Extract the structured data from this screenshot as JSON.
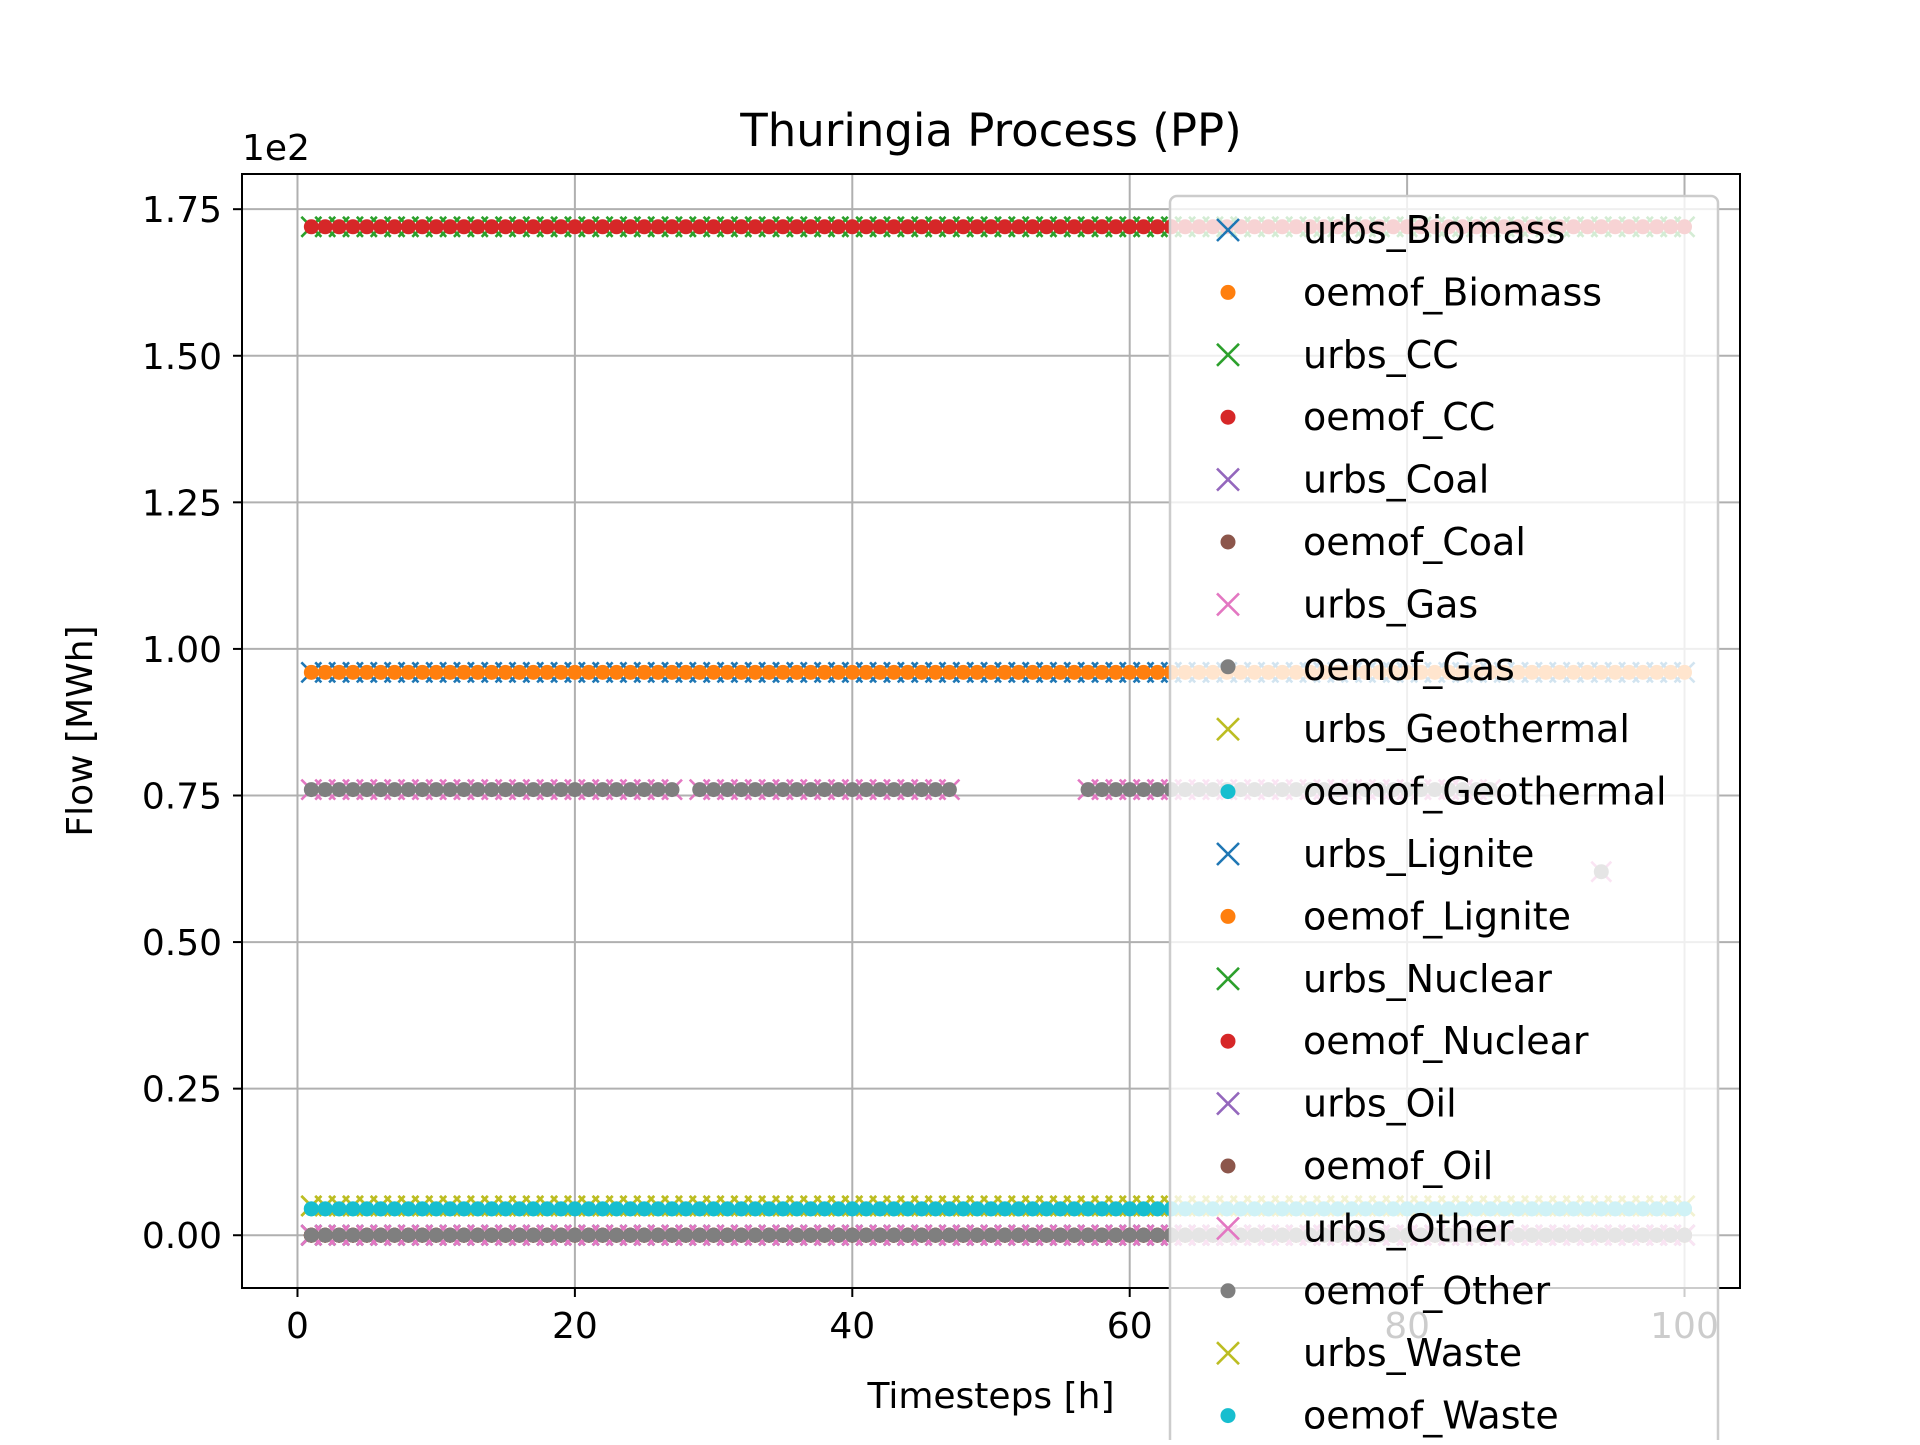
{
  "chart_data": {
    "type": "scatter",
    "title": "Thuringia Process (PP)",
    "xlabel": "Timesteps [h]",
    "ylabel": "Flow [MWh]",
    "y_offset_label": "1e2",
    "xlim": [
      -4,
      104
    ],
    "ylim": [
      -0.09,
      1.81
    ],
    "x_ticks": [
      0,
      20,
      40,
      60,
      80,
      100
    ],
    "x_tick_labels": [
      "0",
      "20",
      "40",
      "60",
      "80",
      "100"
    ],
    "y_ticks": [
      0.0,
      0.25,
      0.5,
      0.75,
      1.0,
      1.25,
      1.5,
      1.75
    ],
    "y_tick_labels": [
      "0.00",
      "0.25",
      "0.50",
      "0.75",
      "1.00",
      "1.25",
      "1.50",
      "1.75"
    ],
    "grid": true,
    "legend_position": "upper-right",
    "x": [
      1,
      100
    ],
    "series": [
      {
        "name": "urbs_Biomass",
        "marker": "x",
        "color": "#1f77b4",
        "segments": [
          [
            1,
            100,
            0.96
          ]
        ]
      },
      {
        "name": "oemof_Biomass",
        "marker": "dot",
        "color": "#ff7f0e",
        "segments": [
          [
            1,
            100,
            0.96
          ]
        ]
      },
      {
        "name": "urbs_CC",
        "marker": "x",
        "color": "#2ca02c",
        "segments": [
          [
            1,
            100,
            1.72
          ]
        ]
      },
      {
        "name": "oemof_CC",
        "marker": "dot",
        "color": "#d62728",
        "segments": [
          [
            1,
            100,
            1.72
          ]
        ]
      },
      {
        "name": "urbs_Coal",
        "marker": "x",
        "color": "#9467bd",
        "segments": [
          [
            1,
            100,
            0.0
          ]
        ]
      },
      {
        "name": "oemof_Coal",
        "marker": "dot",
        "color": "#8c564b",
        "segments": [
          [
            1,
            100,
            0.0
          ]
        ]
      },
      {
        "name": "urbs_Gas",
        "marker": "x",
        "color": "#e377c2",
        "segments": [
          [
            1,
            27,
            0.76
          ],
          [
            29,
            47,
            0.76
          ],
          [
            57,
            86,
            0.76
          ],
          [
            1,
            100,
            0.0
          ]
        ],
        "extra_points": [
          [
            94,
            0.62
          ]
        ]
      },
      {
        "name": "oemof_Gas",
        "marker": "dot",
        "color": "#7f7f7f",
        "segments": [
          [
            1,
            27,
            0.76
          ],
          [
            29,
            47,
            0.76
          ],
          [
            57,
            86,
            0.76
          ],
          [
            1,
            100,
            0.0
          ]
        ],
        "extra_points": [
          [
            94,
            0.62
          ]
        ]
      },
      {
        "name": "urbs_Geothermal",
        "marker": "x",
        "color": "#bcbd22",
        "segments": [
          [
            1,
            100,
            0.05
          ]
        ]
      },
      {
        "name": "oemof_Geothermal",
        "marker": "dot",
        "color": "#17becf",
        "segments": [
          [
            1,
            100,
            0.045
          ]
        ]
      },
      {
        "name": "urbs_Lignite",
        "marker": "x",
        "color": "#1f77b4",
        "segments": [
          [
            1,
            100,
            0.0
          ]
        ]
      },
      {
        "name": "oemof_Lignite",
        "marker": "dot",
        "color": "#ff7f0e",
        "segments": [
          [
            1,
            100,
            0.0
          ]
        ]
      },
      {
        "name": "urbs_Nuclear",
        "marker": "x",
        "color": "#2ca02c",
        "segments": [
          [
            1,
            100,
            0.0
          ]
        ]
      },
      {
        "name": "oemof_Nuclear",
        "marker": "dot",
        "color": "#d62728",
        "segments": [
          [
            1,
            100,
            0.0
          ]
        ]
      },
      {
        "name": "urbs_Oil",
        "marker": "x",
        "color": "#9467bd",
        "segments": [
          [
            1,
            100,
            0.0
          ]
        ]
      },
      {
        "name": "oemof_Oil",
        "marker": "dot",
        "color": "#8c564b",
        "segments": [
          [
            1,
            100,
            0.0
          ]
        ]
      },
      {
        "name": "urbs_Other",
        "marker": "x",
        "color": "#e377c2",
        "segments": [
          [
            1,
            100,
            0.0
          ]
        ]
      },
      {
        "name": "oemof_Other",
        "marker": "dot",
        "color": "#7f7f7f",
        "segments": [
          [
            1,
            100,
            0.0
          ]
        ]
      },
      {
        "name": "urbs_Waste",
        "marker": "x",
        "color": "#bcbd22",
        "segments": [
          [
            1,
            100,
            0.05
          ]
        ]
      },
      {
        "name": "oemof_Waste",
        "marker": "dot",
        "color": "#17becf",
        "segments": [
          [
            1,
            100,
            0.045
          ]
        ]
      }
    ]
  }
}
